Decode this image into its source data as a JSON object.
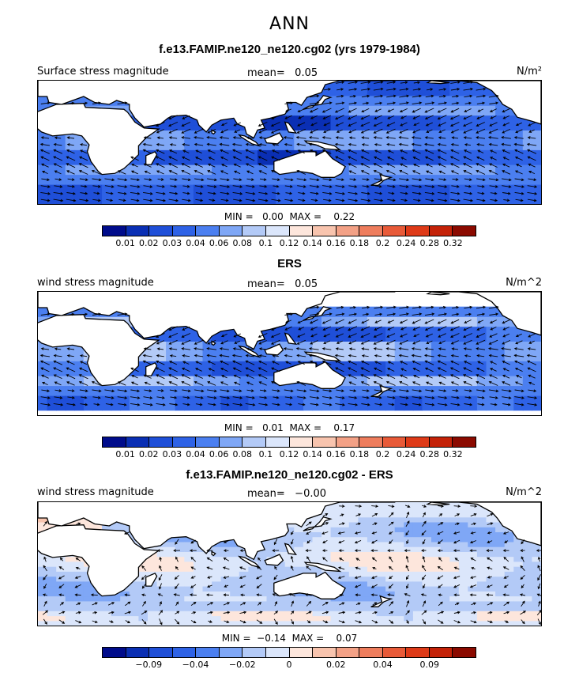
{
  "figure": {
    "title": "ANN",
    "colors": {
      "seq": [
        "#000c8b",
        "#0a2fb4",
        "#1f4fd8",
        "#2e62e6",
        "#4b7ff0",
        "#7fa7f6",
        "#b3caf7",
        "#dbe6fb",
        "#fde6dc",
        "#f8c4ae",
        "#f3a186",
        "#ee7d5d",
        "#e85a38",
        "#de3a18",
        "#c42208",
        "#8b0a00"
      ],
      "land": "#ffffff",
      "coast": "#000000",
      "arrow": "#000000"
    }
  },
  "chart_data": [
    {
      "type": "heatmap",
      "title": "f.e13.FAMIP.ne120_ne120.cg02 (yrs 1979-1984)",
      "field_label": "Surface stress magnitude",
      "mean_label": "mean=",
      "mean_value": "0.05",
      "units": "N/m²",
      "stats": {
        "min_label": "MIN =",
        "min": "0.00",
        "max_label": "MAX =",
        "max": "0.22"
      },
      "colorbar_levels": [
        "0.01",
        "0.02",
        "0.03",
        "0.04",
        "0.06",
        "0.08",
        "0.1",
        "0.12",
        "0.14",
        "0.16",
        "0.18",
        "0.2",
        "0.24",
        "0.28",
        "0.32"
      ],
      "palette": "seq",
      "field_style": "abs_full",
      "lon_range": [
        -15,
        260
      ],
      "lat_range": [
        -65,
        60
      ]
    },
    {
      "type": "heatmap",
      "title": "ERS",
      "field_label": "wind stress magnitude",
      "mean_label": "mean=",
      "mean_value": "0.05",
      "units": "N/m^2",
      "stats": {
        "min_label": "MIN =",
        "min": "0.01",
        "max_label": "MAX =",
        "max": "0.17"
      },
      "colorbar_levels": [
        "0.01",
        "0.02",
        "0.03",
        "0.04",
        "0.06",
        "0.08",
        "0.1",
        "0.12",
        "0.14",
        "0.16",
        "0.18",
        "0.2",
        "0.24",
        "0.28",
        "0.32"
      ],
      "palette": "seq",
      "field_style": "abs_masked",
      "lon_range": [
        -15,
        260
      ],
      "lat_range": [
        -65,
        60
      ]
    },
    {
      "type": "heatmap",
      "title": "f.e13.FAMIP.ne120_ne120.cg02 - ERS",
      "field_label": "wind stress magnitude",
      "mean_label": "mean=",
      "mean_value": "−0.00",
      "units": "N/m^2",
      "stats": {
        "min_label": "MIN =",
        "min": "−0.14",
        "max_label": "MAX =",
        "max": "0.07"
      },
      "colorbar_levels": [
        "",
        "−0.09",
        "",
        "−0.04",
        "",
        "−0.02",
        "",
        "0",
        "",
        "0.02",
        "",
        "0.04",
        "",
        "0.09",
        ""
      ],
      "palette": "seq",
      "field_style": "diff",
      "lon_range": [
        -15,
        260
      ],
      "lat_range": [
        -65,
        60
      ]
    }
  ]
}
